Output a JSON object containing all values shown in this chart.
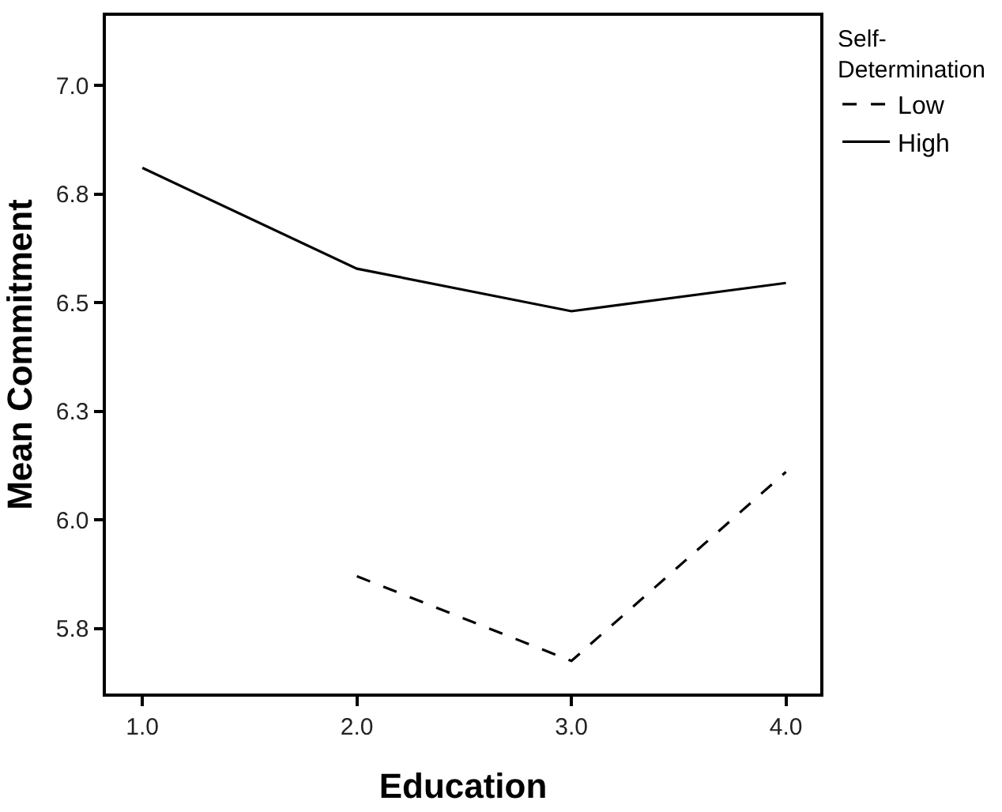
{
  "chart_data": {
    "type": "line",
    "xlabel": "Education",
    "ylabel": "Mean Commitment",
    "legend_title": "Self-Determination",
    "x": [
      1,
      2,
      3,
      4
    ],
    "series": [
      {
        "name": "Low",
        "color": "#000000",
        "line_style": "dashed",
        "values": [
          null,
          5.87,
          5.675,
          6.11
        ]
      },
      {
        "name": "High",
        "color": "#000000",
        "line_style": "solid",
        "values": [
          6.81,
          6.578,
          6.48,
          6.545
        ]
      }
    ],
    "xlim": [
      0.83,
      4.16
    ],
    "ylim": [
      5.6,
      7.16
    ],
    "xticks": [
      {
        "value": 1,
        "label": "1.0"
      },
      {
        "value": 2,
        "label": "2.0"
      },
      {
        "value": 3,
        "label": "3.0"
      },
      {
        "value": 4,
        "label": "4.0"
      }
    ],
    "yticks": [
      {
        "value": 5.75,
        "label": "5.8"
      },
      {
        "value": 6,
        "label": "6.0"
      },
      {
        "value": 6.25,
        "label": "6.3"
      },
      {
        "value": 6.5,
        "label": "6.5"
      },
      {
        "value": 6.75,
        "label": "6.8"
      },
      {
        "value": 7,
        "label": "7.0"
      }
    ],
    "legend": "top right",
    "marker": "none"
  }
}
